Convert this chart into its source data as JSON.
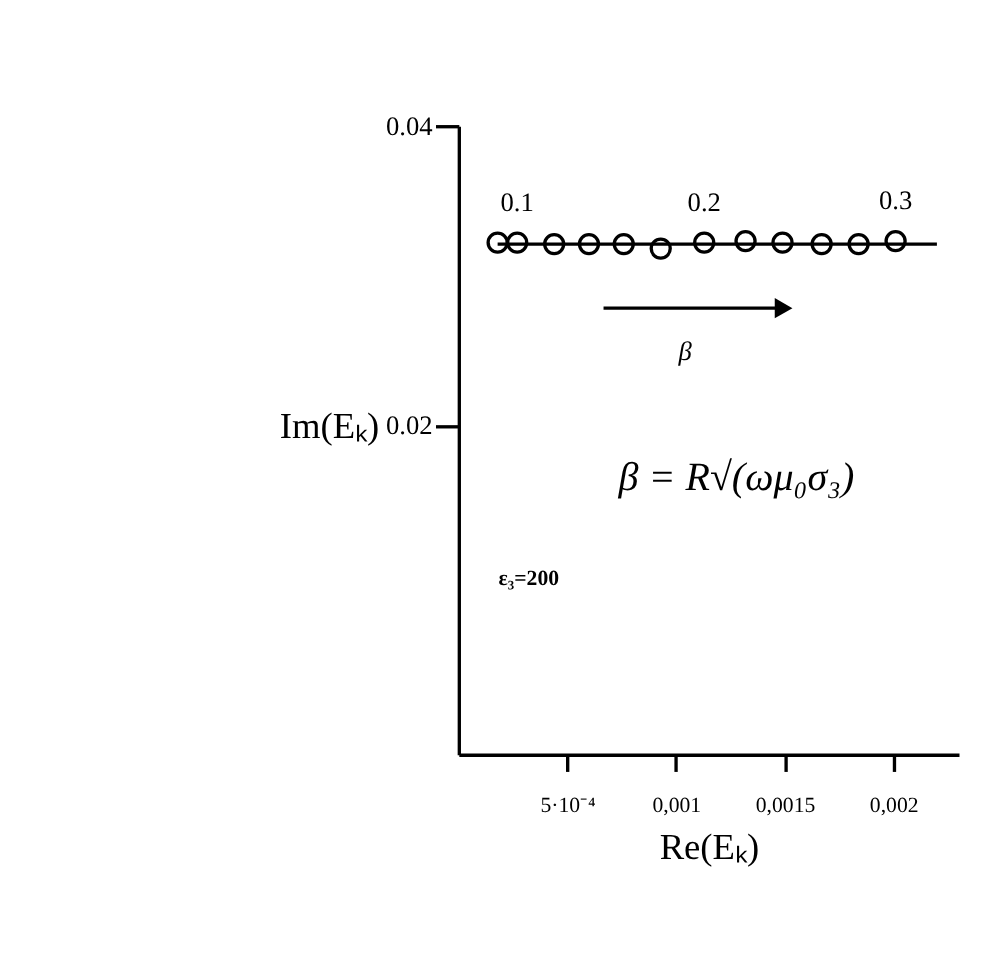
{
  "chart_data": {
    "type": "scatter",
    "xlabel": "Re(Eₖ)",
    "ylabel": "Im(Eₖ)",
    "x": [
      0.00018,
      0.00027,
      0.00044,
      0.0006,
      0.00076,
      0.00093,
      0.00113,
      0.00132,
      0.00149,
      0.00167,
      0.00184,
      0.00201
    ],
    "series": [
      {
        "color": "#000000",
        "values": [
          0.0322,
          0.0322,
          0.0321,
          0.0321,
          0.0321,
          0.0318,
          0.0322,
          0.0323,
          0.0322,
          0.0321,
          0.0321,
          0.0323
        ]
      },
      {
        "type": "line",
        "color": "#000000",
        "x": [
          0.00018,
          0.0022
        ],
        "values": [
          0.0321,
          0.0321
        ],
        "marker": "none"
      }
    ],
    "marker": "circle",
    "grid": false,
    "xlim": [
      0,
      0.0023
    ],
    "ylim": [
      -0.002,
      0.04
    ],
    "xticks": [
      {
        "value": 0.0005,
        "label": "5·10⁻⁴"
      },
      {
        "value": 0.001,
        "label": "0,001"
      },
      {
        "value": 0.0015,
        "label": "0,0015"
      },
      {
        "value": 0.002,
        "label": "0,002"
      }
    ],
    "yticks": [
      0.02,
      0.04
    ],
    "annotations": [
      {
        "text": "0.1",
        "x": 0.00027,
        "y": 0.0322
      },
      {
        "text": "0.2",
        "x": 0.00113,
        "y": 0.0322
      },
      {
        "text": "0.3",
        "x": 0.00201,
        "y": 0.0323
      },
      "β",
      "β = R√(ωμ₀σ₃)",
      "ε₃=200"
    ]
  }
}
